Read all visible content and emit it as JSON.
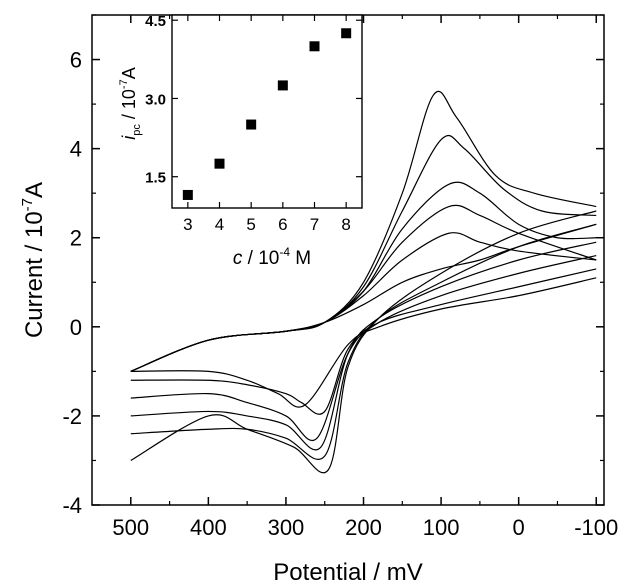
{
  "chart_data": [
    {
      "type": "line",
      "xlabel": "Potential / mV",
      "ylabel": "Current / 10⁻⁷A",
      "ylabel_parts": {
        "main": "Current / 10",
        "exp": "-7",
        "unit": "A"
      },
      "x_reversed": true,
      "xlim": [
        550,
        -110
      ],
      "ylim": [
        -4,
        7
      ],
      "xticks": [
        500,
        400,
        300,
        200,
        100,
        0,
        -100
      ],
      "xtick_labels": [
        "500",
        "400",
        "300",
        "200",
        "100",
        "0",
        "-100"
      ],
      "yticks": [
        -4,
        -2,
        0,
        2,
        4,
        6
      ],
      "ytick_labels": [
        "-4",
        "-2",
        "0",
        "2",
        "4",
        "6"
      ],
      "grid": false,
      "series": [
        {
          "forward": [
            [
              500,
              -1.0
            ],
            [
              400,
              -0.3
            ],
            [
              300,
              -0.1
            ],
            [
              250,
              0.1
            ],
            [
              200,
              1.0
            ],
            [
              150,
              3.0
            ],
            [
              110,
              5.2
            ],
            [
              80,
              4.7
            ],
            [
              30,
              3.4
            ],
            [
              -20,
              3.0
            ],
            [
              -100,
              2.7
            ]
          ],
          "reverse": [
            [
              -100,
              2.6
            ],
            [
              0,
              2.1
            ],
            [
              100,
              1.2
            ],
            [
              180,
              0.2
            ],
            [
              220,
              -0.9
            ],
            [
              245,
              -3.2
            ],
            [
              290,
              -2.7
            ],
            [
              350,
              -2.3
            ],
            [
              400,
              -2.0
            ],
            [
              500,
              -3.0
            ]
          ]
        },
        {
          "forward": [
            [
              500,
              -1.0
            ],
            [
              400,
              -0.3
            ],
            [
              300,
              -0.1
            ],
            [
              250,
              0.1
            ],
            [
              200,
              0.9
            ],
            [
              150,
              2.6
            ],
            [
              100,
              4.2
            ],
            [
              70,
              4.0
            ],
            [
              20,
              3.1
            ],
            [
              -30,
              2.6
            ],
            [
              -100,
              2.5
            ]
          ],
          "reverse": [
            [
              -100,
              2.3
            ],
            [
              0,
              1.8
            ],
            [
              100,
              1.0
            ],
            [
              180,
              0.2
            ],
            [
              220,
              -0.8
            ],
            [
              250,
              -2.9
            ],
            [
              300,
              -2.5
            ],
            [
              350,
              -2.3
            ],
            [
              400,
              -2.3
            ],
            [
              500,
              -2.4
            ]
          ]
        },
        {
          "forward": [
            [
              500,
              -1.0
            ],
            [
              400,
              -0.3
            ],
            [
              300,
              -0.1
            ],
            [
              250,
              0.1
            ],
            [
              200,
              0.8
            ],
            [
              150,
              2.2
            ],
            [
              90,
              3.2
            ],
            [
              50,
              3.0
            ],
            [
              0,
              2.3
            ],
            [
              -50,
              2.0
            ],
            [
              -100,
              2.0
            ]
          ],
          "reverse": [
            [
              -100,
              1.9
            ],
            [
              0,
              1.5
            ],
            [
              100,
              0.9
            ],
            [
              180,
              0.2
            ],
            [
              220,
              -0.6
            ],
            [
              255,
              -2.7
            ],
            [
              300,
              -2.2
            ],
            [
              350,
              -2.0
            ],
            [
              400,
              -1.9
            ],
            [
              500,
              -2.0
            ]
          ]
        },
        {
          "forward": [
            [
              500,
              -1.0
            ],
            [
              400,
              -0.3
            ],
            [
              300,
              -0.1
            ],
            [
              250,
              0.1
            ],
            [
              200,
              0.8
            ],
            [
              150,
              1.9
            ],
            [
              90,
              2.7
            ],
            [
              50,
              2.5
            ],
            [
              0,
              2.1
            ],
            [
              -100,
              1.5
            ]
          ],
          "reverse": [
            [
              -100,
              1.6
            ],
            [
              0,
              1.2
            ],
            [
              100,
              0.7
            ],
            [
              180,
              0.1
            ],
            [
              220,
              -0.6
            ],
            [
              260,
              -2.5
            ],
            [
              300,
              -2.0
            ],
            [
              350,
              -1.7
            ],
            [
              400,
              -1.5
            ],
            [
              500,
              -1.6
            ]
          ]
        },
        {
          "forward": [
            [
              500,
              -1.0
            ],
            [
              400,
              -0.3
            ],
            [
              300,
              -0.1
            ],
            [
              250,
              0.1
            ],
            [
              200,
              0.7
            ],
            [
              150,
              1.5
            ],
            [
              90,
              2.1
            ],
            [
              50,
              1.9
            ],
            [
              0,
              1.7
            ],
            [
              -100,
              1.5
            ]
          ],
          "reverse": [
            [
              -100,
              1.3
            ],
            [
              0,
              0.9
            ],
            [
              100,
              0.5
            ],
            [
              180,
              0.1
            ],
            [
              220,
              -0.5
            ],
            [
              250,
              -1.9
            ],
            [
              280,
              -1.7
            ],
            [
              300,
              -1.5
            ],
            [
              350,
              -1.3
            ],
            [
              400,
              -1.2
            ],
            [
              500,
              -1.2
            ]
          ]
        },
        {
          "forward": [
            [
              500,
              -1.0
            ],
            [
              400,
              -0.3
            ],
            [
              300,
              -0.1
            ],
            [
              250,
              0.1
            ],
            [
              200,
              0.5
            ],
            [
              150,
              1.0
            ],
            [
              100,
              1.3
            ],
            [
              50,
              1.5
            ],
            [
              0,
              1.8
            ],
            [
              -100,
              2.3
            ]
          ],
          "reverse": [
            [
              -100,
              1.1
            ],
            [
              0,
              0.7
            ],
            [
              100,
              0.4
            ],
            [
              180,
              0.0
            ],
            [
              220,
              -0.4
            ],
            [
              275,
              -1.75
            ],
            [
              310,
              -1.5
            ],
            [
              350,
              -1.2
            ],
            [
              400,
              -1.0
            ],
            [
              500,
              -1.0
            ]
          ]
        }
      ]
    },
    {
      "type": "scatter",
      "xlabel": "c / 10⁻⁴ M",
      "xlabel_parts": {
        "main": "c",
        "mid": " / 10",
        "exp": "-4",
        "unit": " M"
      },
      "ylabel": "i_pc / 10⁻⁷A",
      "ylabel_parts": {
        "main": "i",
        "sub": "pc",
        "mid": "  /  10",
        "exp": "-7",
        "unit": "A"
      },
      "xlim": [
        2.5,
        8.5
      ],
      "ylim": [
        0.9,
        4.6
      ],
      "xticks": [
        3,
        4,
        5,
        6,
        7,
        8
      ],
      "xtick_labels": [
        "3",
        "4",
        "5",
        "6",
        "7",
        "8"
      ],
      "yticks": [
        1.5,
        3.0,
        4.5
      ],
      "ytick_labels": [
        "1.5",
        "3.0",
        "4.5"
      ],
      "x": [
        3,
        4,
        5,
        6,
        7,
        8
      ],
      "y": [
        1.15,
        1.75,
        2.5,
        3.25,
        4.0,
        4.25
      ]
    }
  ]
}
